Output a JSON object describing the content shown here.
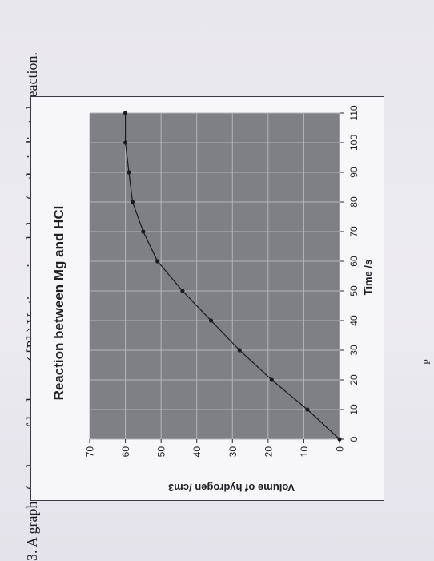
{
  "question": {
    "number": "3.",
    "text": "A graph of volume of hydrogen ( [P] ) Vs time given below for the indicated reaction."
  },
  "page_marker": "P",
  "chart_data": {
    "type": "line",
    "title": "Reaction between Mg and HCl",
    "xlabel": "Time /s",
    "ylabel": "Volume of hydrogen /cm3",
    "xlim": [
      0,
      110
    ],
    "ylim": [
      0,
      70
    ],
    "xticks": [
      0,
      10,
      20,
      30,
      40,
      50,
      60,
      70,
      80,
      90,
      100,
      110
    ],
    "yticks": [
      0,
      10,
      20,
      30,
      40,
      50,
      60,
      70
    ],
    "grid": true,
    "series": [
      {
        "x": [
          0,
          10,
          20,
          30,
          40,
          50,
          60,
          70,
          80,
          90,
          100,
          110
        ],
        "y": [
          0,
          9,
          19,
          28,
          36,
          44,
          51,
          55,
          58,
          59,
          60,
          60
        ]
      }
    ],
    "colors": {
      "plot_bg": "#7f7f86",
      "grid": "#b4b4bb",
      "line": "#1a1a20"
    }
  }
}
